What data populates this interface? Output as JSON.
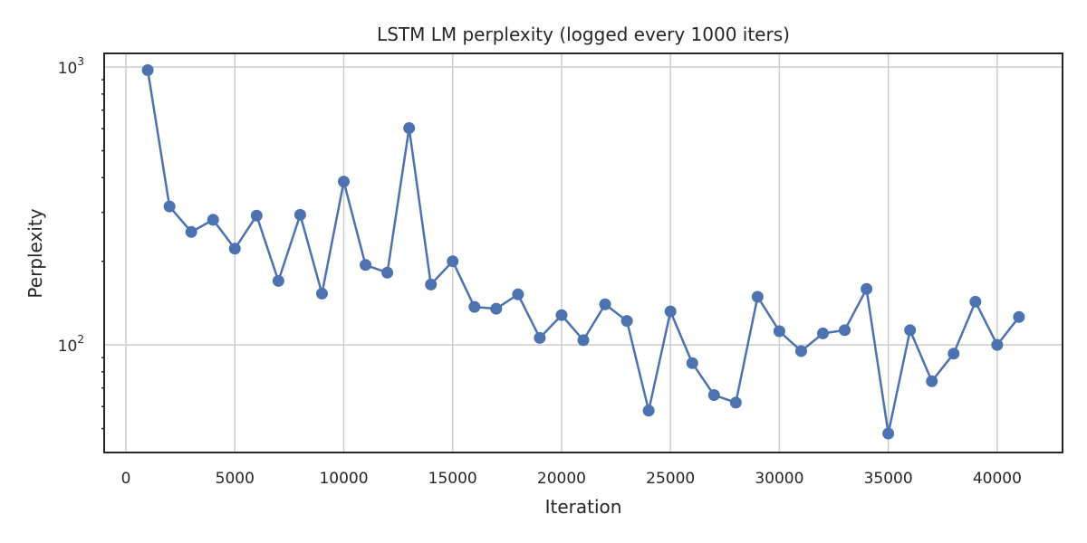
{
  "chart_data": {
    "type": "line",
    "title": "LSTM LM perplexity (logged every 1000 iters)",
    "xlabel": "Iteration",
    "ylabel": "Perplexity",
    "xlim": [
      -1000,
      43000
    ],
    "ylim": [
      41,
      1120
    ],
    "yscale": "log",
    "grid": true,
    "x_ticks": [
      0,
      5000,
      10000,
      15000,
      20000,
      25000,
      30000,
      35000,
      40000
    ],
    "x_tick_labels": [
      "0",
      "5000",
      "10000",
      "15000",
      "20000",
      "25000",
      "30000",
      "35000",
      "40000"
    ],
    "y_ticks": [
      {
        "value": 100,
        "base": "10",
        "exp": "2"
      },
      {
        "value": 1000,
        "base": "10",
        "exp": "3"
      }
    ],
    "color": "#4c72b0",
    "series": [
      {
        "x": [
          1000,
          2000,
          3000,
          4000,
          5000,
          6000,
          7000,
          8000,
          9000,
          10000,
          11000,
          12000,
          13000,
          14000,
          15000,
          16000,
          17000,
          18000,
          19000,
          20000,
          21000,
          22000,
          23000,
          24000,
          25000,
          26000,
          27000,
          28000,
          29000,
          30000,
          31000,
          32000,
          33000,
          34000,
          35000,
          36000,
          37000,
          38000,
          39000,
          40000,
          41000
        ],
        "y": [
          975,
          315,
          255,
          282,
          222,
          292,
          170,
          294,
          153,
          387,
          194,
          182,
          603,
          165,
          200,
          137,
          135,
          152,
          106,
          128,
          104,
          140,
          122,
          58,
          132,
          86,
          66,
          62,
          149,
          112,
          95,
          110,
          113,
          159,
          48,
          113,
          74,
          93,
          143,
          100,
          126
        ]
      }
    ]
  }
}
